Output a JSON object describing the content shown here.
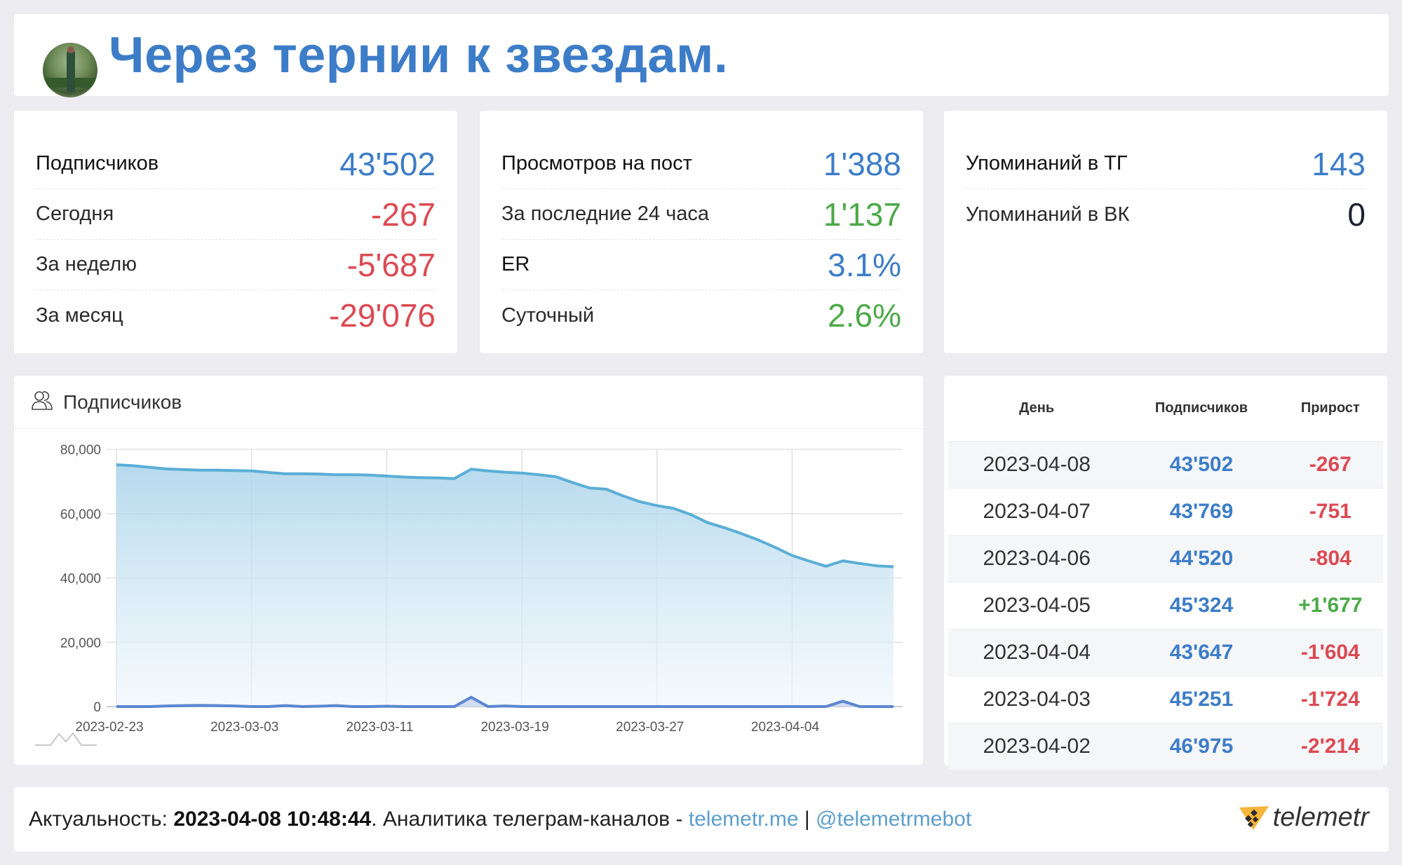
{
  "header": {
    "title": "Через тернии к звездам.",
    "avatar_alt": "channel-avatar"
  },
  "colors": {
    "accent_blue": "#3d7dc8",
    "negative_red": "#dc4a53",
    "positive_green": "#4caa48",
    "line": "#5aaed6",
    "gain_line": "#5b86d0"
  },
  "stats": {
    "subscribers": {
      "rows": [
        {
          "label": "Подписчиков",
          "value": "43'502",
          "color": "blue"
        },
        {
          "label": "Сегодня",
          "value": "-267",
          "color": "red"
        },
        {
          "label": "За неделю",
          "value": "-5'687",
          "color": "red"
        },
        {
          "label": "За месяц",
          "value": "-29'076",
          "color": "red"
        }
      ]
    },
    "views": {
      "rows": [
        {
          "label": "Просмотров на пост",
          "value": "1'388",
          "color": "blue"
        },
        {
          "label": "За последние 24 часа",
          "value": "1'137",
          "color": "green"
        },
        {
          "label": "ER",
          "value": "3.1%",
          "color": "blue"
        },
        {
          "label": "Суточный",
          "value": "2.6%",
          "color": "green"
        }
      ]
    },
    "mentions": {
      "rows": [
        {
          "label": "Упоминаний в ТГ",
          "value": "143",
          "color": "blue"
        },
        {
          "label": "Упоминаний в ВК",
          "value": "0",
          "color": "dark"
        }
      ]
    }
  },
  "chart": {
    "title": "Подписчиков",
    "icon": "users-icon"
  },
  "chart_data": {
    "type": "area",
    "title": "Подписчиков",
    "xlabel": "",
    "ylabel": "",
    "ylim": [
      0,
      80000
    ],
    "yticks": [
      "0",
      "20,000",
      "40,000",
      "60,000",
      "80,000"
    ],
    "xticks": [
      "2023-02-23",
      "2023-03-03",
      "2023-03-11",
      "2023-03-19",
      "2023-03-27",
      "2023-04-04"
    ],
    "grid": true,
    "legend": "none",
    "x_start": "2023-02-23",
    "x_end": "2023-04-08",
    "series": [
      {
        "name": "Подписчиков",
        "values": [
          75200,
          74900,
          74400,
          73900,
          73700,
          73500,
          73500,
          73400,
          73300,
          72800,
          72400,
          72400,
          72300,
          72100,
          72100,
          72000,
          71700,
          71400,
          71200,
          71100,
          70900,
          73800,
          73300,
          72900,
          72600,
          72100,
          71500,
          69700,
          68000,
          67600,
          65500,
          63700,
          62500,
          61600,
          59700,
          57200,
          55600,
          53800,
          51800,
          49500,
          46975,
          45251,
          43647,
          45324,
          44520,
          43769,
          43502
        ]
      },
      {
        "name": "Прирост",
        "values": [
          0,
          0,
          0,
          200,
          300,
          400,
          300,
          200,
          0,
          0,
          300,
          0,
          100,
          300,
          0,
          0,
          100,
          0,
          0,
          0,
          0,
          2900,
          0,
          200,
          0,
          0,
          0,
          0,
          0,
          0,
          0,
          0,
          0,
          0,
          0,
          0,
          0,
          0,
          0,
          0,
          0,
          0,
          0,
          1677,
          0,
          0,
          0
        ]
      }
    ]
  },
  "table": {
    "headers": [
      "День",
      "Подписчиков",
      "Прирост"
    ],
    "rows": [
      {
        "day": "2023-04-08",
        "subs": "43'502",
        "gain": "-267",
        "color": "red"
      },
      {
        "day": "2023-04-07",
        "subs": "43'769",
        "gain": "-751",
        "color": "red"
      },
      {
        "day": "2023-04-06",
        "subs": "44'520",
        "gain": "-804",
        "color": "red"
      },
      {
        "day": "2023-04-05",
        "subs": "45'324",
        "gain": "+1'677",
        "color": "green"
      },
      {
        "day": "2023-04-04",
        "subs": "43'647",
        "gain": "-1'604",
        "color": "red"
      },
      {
        "day": "2023-04-03",
        "subs": "45'251",
        "gain": "-1'724",
        "color": "red"
      },
      {
        "day": "2023-04-02",
        "subs": "46'975",
        "gain": "-2'214",
        "color": "red"
      }
    ]
  },
  "footer": {
    "prefix": "Актуальность: ",
    "timestamp": "2023-04-08 10:48:44",
    "middle": ". Аналитика телеграм-каналов - ",
    "site_link": "telemetr.me",
    "separator": " | ",
    "bot_link": "@telemetrmebot",
    "logo_text": "telemetr"
  }
}
